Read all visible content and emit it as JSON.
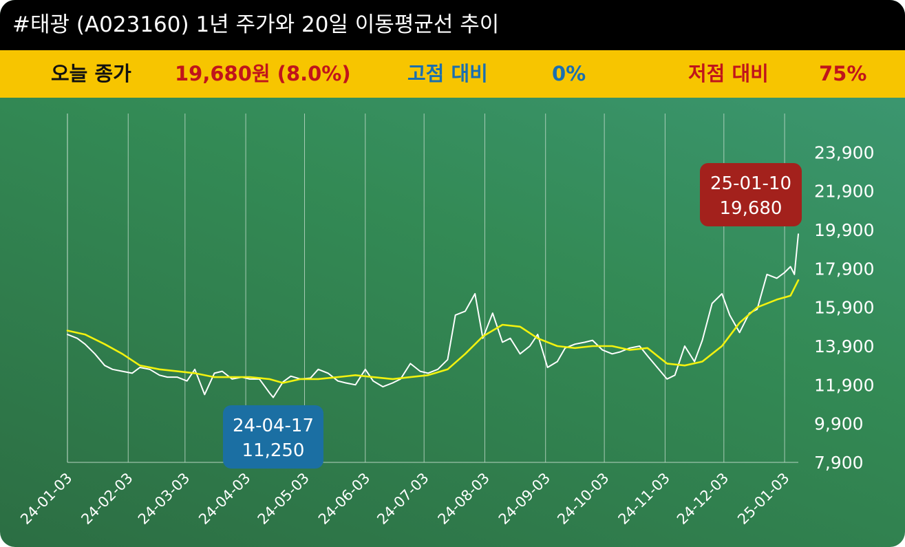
{
  "header": {
    "title": "#태광 (A023160) 1년 주가와 20일 이동평균선 추이"
  },
  "stats": {
    "close_label": "오늘 종가",
    "close_value": "19,680원 (8.0%)",
    "high_label": "고점 대비",
    "high_value": "0%",
    "low_label": "저점 대비",
    "low_value": "75%"
  },
  "colors": {
    "price_line": "#ffffff",
    "ma_line": "#f2f20f",
    "high_callout": "#a3211c",
    "low_callout": "#1b6fa3",
    "grid": "#cfe3d6"
  },
  "chart_data": {
    "type": "line",
    "title": "",
    "xlabel": "",
    "ylabel": "",
    "ylim": [
      7900,
      25900
    ],
    "y_ticks": [
      "7,900",
      "9,900",
      "11,900",
      "13,900",
      "15,900",
      "17,900",
      "19,900",
      "21,900",
      "23,900"
    ],
    "x_ticks": [
      "24-01-03",
      "24-02-03",
      "24-03-03",
      "24-04-03",
      "24-05-03",
      "24-06-03",
      "24-07-03",
      "24-08-03",
      "24-09-03",
      "24-10-03",
      "24-11-03",
      "24-12-03",
      "25-01-03"
    ],
    "x_range": [
      "2024-01-03",
      "2025-01-10"
    ],
    "series": [
      {
        "key": "price",
        "x": [
          "2024-01-03",
          "2024-01-08",
          "2024-01-12",
          "2024-01-17",
          "2024-01-22",
          "2024-01-26",
          "2024-01-31",
          "2024-02-05",
          "2024-02-09",
          "2024-02-14",
          "2024-02-19",
          "2024-02-23",
          "2024-02-28",
          "2024-03-04",
          "2024-03-08",
          "2024-03-13",
          "2024-03-18",
          "2024-03-22",
          "2024-03-27",
          "2024-04-01",
          "2024-04-05",
          "2024-04-10",
          "2024-04-15",
          "2024-04-17",
          "2024-04-22",
          "2024-04-26",
          "2024-05-01",
          "2024-05-06",
          "2024-05-10",
          "2024-05-15",
          "2024-05-20",
          "2024-05-24",
          "2024-05-29",
          "2024-06-03",
          "2024-06-07",
          "2024-06-12",
          "2024-06-17",
          "2024-06-21",
          "2024-06-26",
          "2024-07-01",
          "2024-07-05",
          "2024-07-10",
          "2024-07-15",
          "2024-07-19",
          "2024-07-24",
          "2024-07-29",
          "2024-08-02",
          "2024-08-07",
          "2024-08-12",
          "2024-08-16",
          "2024-08-21",
          "2024-08-26",
          "2024-08-30",
          "2024-09-04",
          "2024-09-09",
          "2024-09-13",
          "2024-09-18",
          "2024-09-23",
          "2024-09-27",
          "2024-10-02",
          "2024-10-07",
          "2024-10-11",
          "2024-10-16",
          "2024-10-21",
          "2024-10-25",
          "2024-10-30",
          "2024-11-04",
          "2024-11-08",
          "2024-11-13",
          "2024-11-18",
          "2024-11-22",
          "2024-11-27",
          "2024-12-02",
          "2024-12-06",
          "2024-12-11",
          "2024-12-16",
          "2024-12-20",
          "2024-12-25",
          "2024-12-30",
          "2025-01-03",
          "2025-01-06",
          "2025-01-08",
          "2025-01-10"
        ],
        "values": [
          14500,
          14300,
          14000,
          13500,
          12900,
          12700,
          12600,
          12500,
          12800,
          12700,
          12400,
          12300,
          12300,
          12100,
          12700,
          11400,
          12500,
          12600,
          12200,
          12300,
          12200,
          12200,
          11500,
          11250,
          12050,
          12350,
          12200,
          12250,
          12700,
          12500,
          12100,
          12000,
          11900,
          12700,
          12100,
          11800,
          12000,
          12200,
          13000,
          12600,
          12500,
          12700,
          13200,
          15500,
          15700,
          16600,
          14300,
          15600,
          14100,
          14300,
          13500,
          13900,
          14500,
          12800,
          13100,
          13800,
          14000,
          14100,
          14200,
          13700,
          13500,
          13600,
          13800,
          13900,
          13400,
          12800,
          12200,
          12400,
          13900,
          13100,
          14200,
          16100,
          16600,
          15500,
          14600,
          15600,
          15800,
          17600,
          17400,
          17700,
          18000,
          17600,
          19680
        ]
      },
      {
        "key": "ma20",
        "x": [
          "2024-01-03",
          "2024-01-12",
          "2024-01-22",
          "2024-01-31",
          "2024-02-09",
          "2024-02-19",
          "2024-02-28",
          "2024-03-08",
          "2024-03-18",
          "2024-03-27",
          "2024-04-05",
          "2024-04-15",
          "2024-04-22",
          "2024-05-01",
          "2024-05-10",
          "2024-05-20",
          "2024-05-29",
          "2024-06-07",
          "2024-06-17",
          "2024-06-26",
          "2024-07-05",
          "2024-07-15",
          "2024-07-24",
          "2024-08-02",
          "2024-08-12",
          "2024-08-21",
          "2024-08-30",
          "2024-09-09",
          "2024-09-18",
          "2024-09-27",
          "2024-10-07",
          "2024-10-16",
          "2024-10-25",
          "2024-11-04",
          "2024-11-13",
          "2024-11-22",
          "2024-12-02",
          "2024-12-11",
          "2024-12-20",
          "2024-12-30",
          "2025-01-06",
          "2025-01-10"
        ],
        "values": [
          14700,
          14500,
          14000,
          13500,
          12900,
          12700,
          12600,
          12500,
          12300,
          12300,
          12300,
          12200,
          12000,
          12200,
          12200,
          12300,
          12400,
          12300,
          12200,
          12300,
          12400,
          12700,
          13500,
          14400,
          15000,
          14900,
          14300,
          13900,
          13800,
          13900,
          13900,
          13700,
          13800,
          13000,
          12900,
          13100,
          13900,
          15100,
          15900,
          16300,
          16500,
          17300
        ]
      }
    ],
    "annotations": [
      {
        "kind": "high",
        "date_label": "25-01-10",
        "value_label": "19,680",
        "x": "2025-01-10",
        "y": 19680
      },
      {
        "kind": "low",
        "date_label": "24-04-17",
        "value_label": "11,250",
        "x": "2024-04-17",
        "y": 11250
      }
    ],
    "grid": true,
    "legend": "none"
  }
}
